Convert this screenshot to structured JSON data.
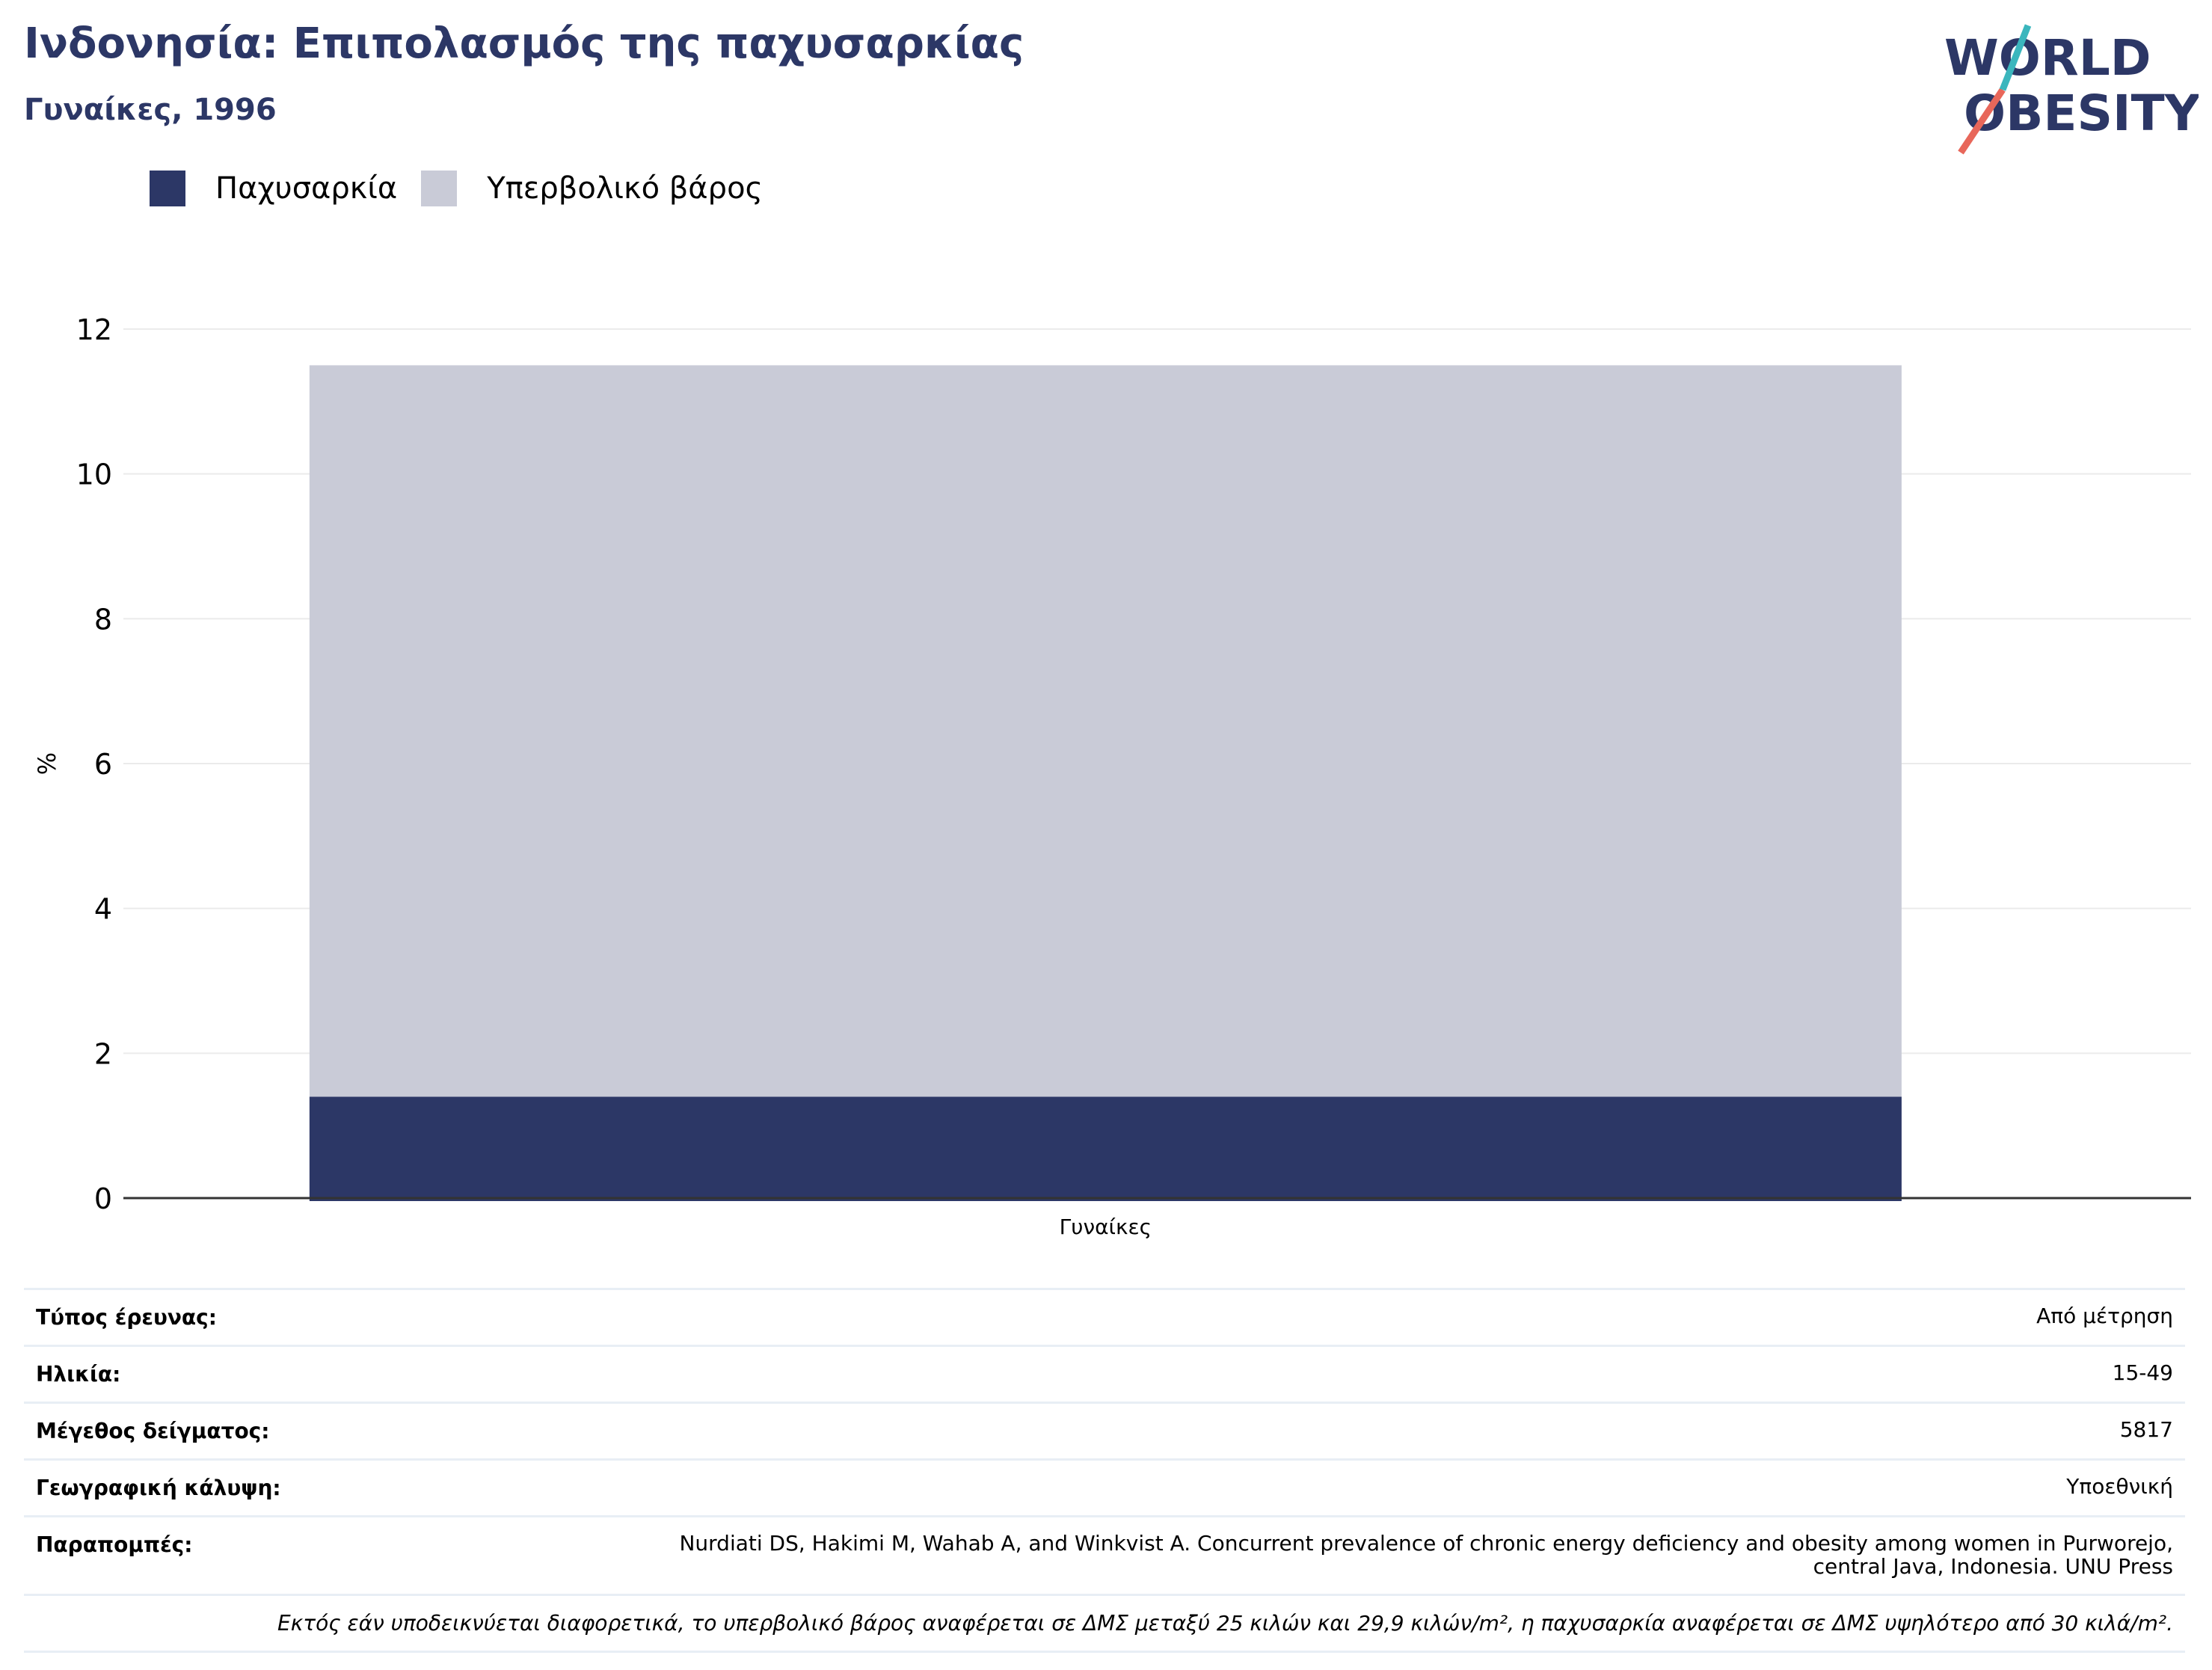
{
  "header": {
    "title": "Ινδονησία: Επιπολασμός της παχυσαρκίας",
    "subtitle": "Γυναίκες, 1996"
  },
  "logo": {
    "line1": "WORLD",
    "line2": "OBESITY"
  },
  "colors": {
    "obesity": "#2c3766",
    "overweight": "#c9cbd7",
    "text": "#2c3766"
  },
  "chart_data": {
    "type": "bar",
    "stacked": true,
    "categories": [
      "Γυναίκες"
    ],
    "series": [
      {
        "name": "Παχυσαρκία",
        "values": [
          1.4
        ]
      },
      {
        "name": "Υπερβολικό βάρος",
        "values": [
          10.1
        ]
      }
    ],
    "ylabel": "%",
    "ylim": [
      0,
      12
    ],
    "yticks": [
      0,
      2,
      4,
      6,
      8,
      10,
      12
    ],
    "grid": true,
    "legend": "top-left"
  },
  "info": {
    "rows": [
      {
        "key": "Τύπος έρευνας:",
        "value": "Από μέτρηση"
      },
      {
        "key": "Ηλικία:",
        "value": "15-49"
      },
      {
        "key": "Μέγεθος δείγματος:",
        "value": "5817"
      },
      {
        "key": "Γεωγραφική κάλυψη:",
        "value": "Υποεθνική"
      },
      {
        "key": "Παραπομπές:",
        "value": "Nurdiati DS, Hakimi M, Wahab A, and Winkvist A. Concurrent prevalence of chronic energy deficiency and obesity among women in Purworejo, central Java, Indonesia. UNU Press"
      }
    ],
    "footnote": "Εκτός εάν υποδεικνύεται διαφορετικά, το υπερβολικό βάρος αναφέρεται σε ΔΜΣ μεταξύ 25 κιλών και 29,9 κιλών/m², η παχυσαρκία αναφέρεται σε ΔΜΣ υψηλότερο από 30 κιλά/m²."
  }
}
